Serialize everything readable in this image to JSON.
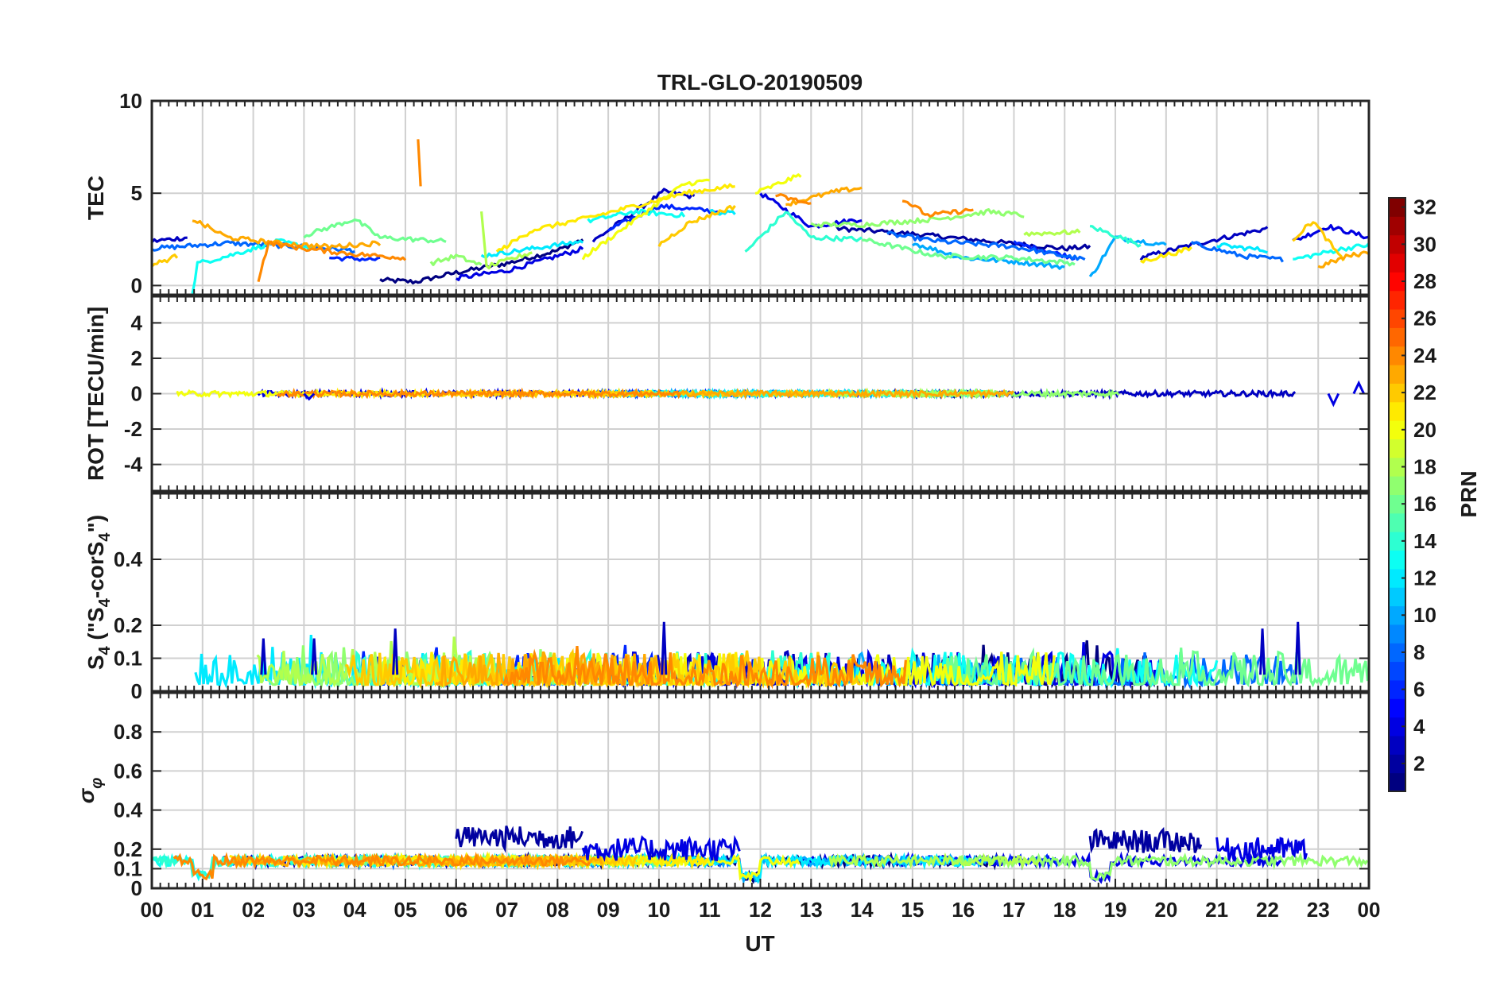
{
  "chart_data": {
    "type": "line",
    "title": "TRL-GLO-20190509",
    "xlabel": "UT",
    "xlim": [
      0,
      24
    ],
    "x_ticks": [
      0,
      1,
      2,
      3,
      4,
      5,
      6,
      7,
      8,
      9,
      10,
      11,
      12,
      13,
      14,
      15,
      16,
      17,
      18,
      19,
      20,
      21,
      22,
      23,
      24
    ],
    "x_tick_labels": [
      "00",
      "01",
      "02",
      "03",
      "04",
      "05",
      "06",
      "07",
      "08",
      "09",
      "10",
      "11",
      "12",
      "13",
      "14",
      "15",
      "16",
      "17",
      "18",
      "19",
      "20",
      "21",
      "22",
      "23",
      "00"
    ],
    "colorbar": {
      "label": "PRN",
      "range": [
        1,
        32
      ],
      "ticks": [
        2,
        4,
        6,
        8,
        10,
        12,
        14,
        16,
        18,
        20,
        22,
        24,
        26,
        28,
        30,
        32
      ],
      "colormap": "jet"
    },
    "panels": [
      {
        "id": "tec",
        "ylabel": "TEC",
        "ylim": [
          -0.5,
          10
        ],
        "yticks": [
          0,
          5,
          10
        ],
        "ytick_labels": [
          "0",
          "5",
          "10"
        ],
        "series": [
          {
            "prn": 1,
            "segments": [
              [
                [
                  4.5,
                  0.3
                ],
                [
                  5.2,
                  0.2
                ],
                [
                  6.0,
                  0.7
                ],
                [
                  7.0,
                  1.2
                ],
                [
                  8.0,
                  1.9
                ],
                [
                  8.5,
                  2.5
                ]
              ]
            ]
          },
          {
            "prn": 2,
            "segments": [
              [
                [
                  13.5,
                  3.1
                ],
                [
                  15.0,
                  2.8
                ],
                [
                  16.5,
                  2.4
                ],
                [
                  18.0,
                  2.0
                ],
                [
                  18.5,
                  2.1
                ]
              ]
            ]
          },
          {
            "prn": 3,
            "segments": [
              [
                [
                  0.0,
                  2.4
                ],
                [
                  0.7,
                  2.6
                ]
              ],
              [
                [
                  8.7,
                  2.4
                ],
                [
                  10.1,
                  5.1
                ],
                [
                  10.7,
                  4.8
                ]
              ],
              [
                [
                  19.5,
                  1.5
                ],
                [
                  20.5,
                  2.2
                ],
                [
                  22.0,
                  3.1
                ]
              ]
            ]
          },
          {
            "prn": 4,
            "segments": [
              [
                [
                  6.0,
                  0.4
                ],
                [
                  7.0,
                  0.8
                ],
                [
                  8.5,
                  2.0
                ]
              ],
              [
                [
                  12.0,
                  5.0
                ],
                [
                  13.0,
                  3.2
                ],
                [
                  14.0,
                  3.6
                ]
              ],
              [
                [
                  22.5,
                  2.4
                ],
                [
                  23.2,
                  3.2
                ],
                [
                  24.0,
                  2.6
                ]
              ]
            ]
          },
          {
            "prn": 6,
            "segments": [
              [
                [
                  3.5,
                  1.5
                ],
                [
                  4.5,
                  1.4
                ]
              ],
              [
                [
                  9.0,
                  3.0
                ],
                [
                  10.0,
                  4.3
                ],
                [
                  11.2,
                  4.0
                ]
              ],
              [
                [
                  17.0,
                  2.3
                ],
                [
                  18.2,
                  1.5
                ]
              ]
            ]
          },
          {
            "prn": 8,
            "segments": [
              [
                [
                  0.0,
                  2.0
                ],
                [
                  1.5,
                  2.3
                ],
                [
                  3.0,
                  2.1
                ],
                [
                  4.0,
                  1.9
                ]
              ],
              [
                [
                  14.5,
                  2.8
                ],
                [
                  15.5,
                  2.4
                ],
                [
                  17.0,
                  2.1
                ],
                [
                  18.4,
                  1.4
                ]
              ],
              [
                [
                  20.5,
                  2.3
                ],
                [
                  21.5,
                  1.6
                ],
                [
                  22.3,
                  1.4
                ]
              ]
            ]
          },
          {
            "prn": 10,
            "segments": [
              [
                [
                  15.0,
                  2.3
                ],
                [
                  16.0,
                  1.5
                ],
                [
                  17.0,
                  1.3
                ],
                [
                  18.0,
                  1.0
                ]
              ],
              [
                [
                  18.5,
                  0.4
                ],
                [
                  19.0,
                  2.6
                ],
                [
                  20.0,
                  2.2
                ]
              ]
            ]
          },
          {
            "prn": 12,
            "segments": [
              [
                [
                  6.5,
                  1.6
                ],
                [
                  7.5,
                  2.0
                ],
                [
                  8.5,
                  2.4
                ]
              ],
              [
                [
                  11.0,
                  4.0
                ],
                [
                  11.5,
                  3.9
                ]
              ],
              [
                [
                  21.0,
                  2.2
                ],
                [
                  22.0,
                  1.9
                ]
              ]
            ]
          },
          {
            "prn": 13,
            "segments": [
              [
                [
                  0.8,
                  -0.5
                ],
                [
                  0.9,
                  1.2
                ],
                [
                  1.5,
                  1.6
                ],
                [
                  2.5,
                  2.4
                ],
                [
                  3.2,
                  2.0
                ]
              ],
              [
                [
                  8.6,
                  3.5
                ],
                [
                  9.5,
                  4.0
                ],
                [
                  10.5,
                  3.8
                ]
              ],
              [
                [
                  22.5,
                  1.4
                ],
                [
                  23.5,
                  2.0
                ],
                [
                  24.0,
                  2.2
                ]
              ]
            ]
          },
          {
            "prn": 14,
            "segments": [
              [
                [
                  11.7,
                  1.8
                ],
                [
                  12.5,
                  4.0
                ],
                [
                  13.0,
                  2.6
                ],
                [
                  14.0,
                  2.5
                ]
              ],
              [
                [
                  18.5,
                  3.2
                ],
                [
                  19.5,
                  2.2
                ]
              ]
            ]
          },
          {
            "prn": 16,
            "segments": [
              [
                [
                  3.0,
                  2.7
                ],
                [
                  4.0,
                  3.6
                ],
                [
                  4.5,
                  2.6
                ],
                [
                  5.8,
                  2.4
                ]
              ],
              [
                [
                  14.0,
                  2.5
                ],
                [
                  15.5,
                  1.6
                ],
                [
                  17.0,
                  1.5
                ],
                [
                  18.2,
                  1.2
                ]
              ]
            ]
          },
          {
            "prn": 17,
            "segments": [
              [
                [
                  5.5,
                  1.2
                ],
                [
                  6.0,
                  1.6
                ],
                [
                  6.5,
                  1.1
                ]
              ],
              [
                [
                  13.0,
                  3.3
                ],
                [
                  14.0,
                  3.3
                ],
                [
                  15.5,
                  3.6
                ],
                [
                  16.5,
                  4.0
                ],
                [
                  17.2,
                  3.8
                ]
              ]
            ]
          },
          {
            "prn": 18,
            "segments": [
              [
                [
                  6.5,
                  3.9
                ],
                [
                  6.6,
                  1.0
                ],
                [
                  7.5,
                  1.8
                ]
              ],
              [
                [
                  17.2,
                  2.8
                ],
                [
                  18.3,
                  2.9
                ]
              ]
            ]
          },
          {
            "prn": 20,
            "segments": [
              [
                [
                  8.5,
                  1.5
                ],
                [
                  9.5,
                  3.5
                ],
                [
                  10.5,
                  5.5
                ],
                [
                  11.0,
                  5.7
                ]
              ],
              [
                [
                  11.9,
                  5.0
                ],
                [
                  12.8,
                  6.0
                ]
              ]
            ]
          },
          {
            "prn": 21,
            "segments": [
              [
                [
                  6.8,
                  1.8
                ],
                [
                  7.5,
                  3.0
                ],
                [
                  8.5,
                  3.6
                ],
                [
                  9.8,
                  4.5
                ],
                [
                  10.5,
                  5.0
                ],
                [
                  11.5,
                  5.4
                ]
              ],
              [
                [
                  19.5,
                  1.3
                ],
                [
                  20.5,
                  2.0
                ]
              ]
            ]
          },
          {
            "prn": 22,
            "segments": [
              [
                [
                  10.0,
                  2.2
                ],
                [
                  10.6,
                  3.4
                ],
                [
                  11.5,
                  4.3
                ]
              ],
              [
                [
                  0.0,
                  1.1
                ],
                [
                  0.5,
                  1.6
                ]
              ],
              [
                [
                  22.5,
                  2.5
                ],
                [
                  22.9,
                  3.5
                ],
                [
                  23.5,
                  1.3
                ]
              ]
            ]
          },
          {
            "prn": 23,
            "segments": [
              [
                [
                  0.8,
                  3.6
                ],
                [
                  1.5,
                  2.6
                ],
                [
                  2.5,
                  2.3
                ],
                [
                  3.5,
                  2.1
                ],
                [
                  4.5,
                  2.3
                ]
              ],
              [
                [
                  12.5,
                  4.4
                ],
                [
                  13.5,
                  5.1
                ],
                [
                  14.0,
                  5.3
                ]
              ],
              [
                [
                  23.0,
                  1.0
                ],
                [
                  23.6,
                  1.6
                ],
                [
                  24.0,
                  1.8
                ]
              ]
            ]
          },
          {
            "prn": 24,
            "segments": [
              [
                [
                  2.1,
                  0.3
                ],
                [
                  2.3,
                  2.3
                ],
                [
                  3.0,
                  2.0
                ],
                [
                  4.0,
                  1.7
                ],
                [
                  5.0,
                  1.5
                ]
              ],
              [
                [
                  5.25,
                  7.9
                ],
                [
                  5.3,
                  5.4
                ]
              ],
              [
                [
                  14.8,
                  4.7
                ],
                [
                  15.3,
                  3.8
                ],
                [
                  16.2,
                  4.1
                ]
              ],
              [
                [
                  12.3,
                  4.9
                ],
                [
                  13.0,
                  4.4
                ]
              ]
            ]
          }
        ]
      },
      {
        "id": "rot",
        "ylabel": "ROT [TECU/min]",
        "ylim": [
          -5.5,
          5.5
        ],
        "yticks": [
          -4,
          -2,
          0,
          2,
          4
        ],
        "ytick_labels": [
          "-4",
          "-2",
          "0",
          "2",
          "4"
        ],
        "baseline": 0,
        "noise_amplitude": 0.15,
        "events": [
          {
            "x": 23.3,
            "y": -0.6
          },
          {
            "x": 23.8,
            "y": 0.6
          },
          {
            "x": 3.1,
            "y": -0.3
          }
        ]
      },
      {
        "id": "s4",
        "ylabel": "S",
        "ylabel_sub": "4",
        "ylabel_rest": " (\"S",
        "ylabel_sub2": "4",
        "ylabel_rest2": "-corS",
        "ylabel_sub3": "4",
        "ylabel_end": "\")",
        "ylim": [
          0,
          0.6
        ],
        "yticks": [
          0,
          0.1,
          0.2,
          0.4
        ],
        "ytick_labels": [
          "0",
          "0.1",
          "0.2",
          "0.4"
        ],
        "typical_range": [
          0.02,
          0.12
        ],
        "peaks": [
          {
            "x": 10.1,
            "y": 0.21
          },
          {
            "x": 22.6,
            "y": 0.21
          },
          {
            "x": 21.9,
            "y": 0.19
          },
          {
            "x": 3.2,
            "y": 0.16
          },
          {
            "x": 2.2,
            "y": 0.16
          },
          {
            "x": 4.8,
            "y": 0.19
          }
        ]
      },
      {
        "id": "sigma",
        "ylabel": "σ",
        "ylabel_sub": "φ",
        "ylim": [
          0,
          1.0
        ],
        "yticks": [
          0,
          0.1,
          0.2,
          0.4,
          0.6,
          0.8
        ],
        "ytick_labels": [
          "0",
          "0.1",
          "0.2",
          "0.4",
          "0.6",
          "0.8"
        ],
        "baseline": 0.14,
        "elevated_intervals": [
          {
            "x0": 6.0,
            "x1": 8.5,
            "level": 0.26
          },
          {
            "x0": 8.5,
            "x1": 11.6,
            "level": 0.2
          },
          {
            "x0": 18.5,
            "x1": 20.7,
            "level": 0.24
          },
          {
            "x0": 21.0,
            "x1": 22.8,
            "level": 0.2
          }
        ],
        "dips": [
          {
            "x0": 0.8,
            "x1": 1.2,
            "level": 0.07
          },
          {
            "x0": 11.6,
            "x1": 12.0,
            "level": 0.06
          },
          {
            "x0": 18.5,
            "x1": 18.9,
            "level": 0.06
          }
        ]
      }
    ]
  }
}
